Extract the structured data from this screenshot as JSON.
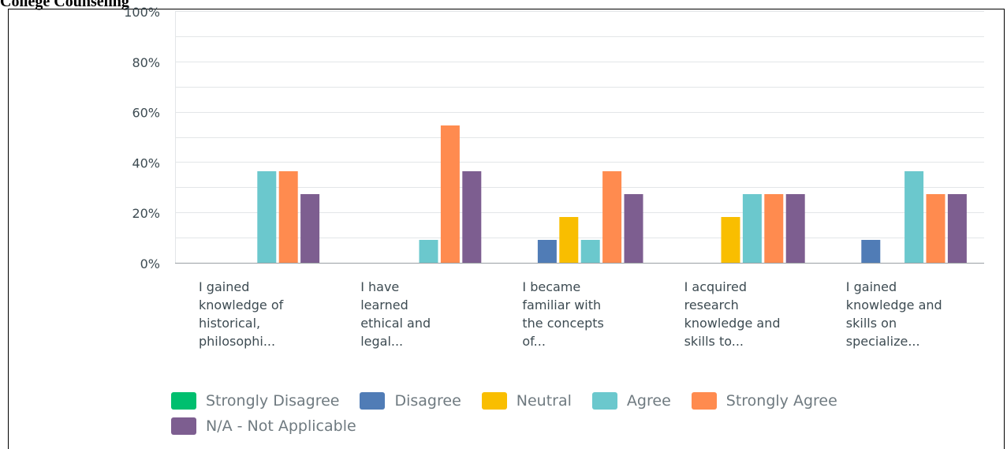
{
  "document": {
    "heading": "College Counseling"
  },
  "chart_data": {
    "type": "bar",
    "categories": [
      [
        "I gained",
        "knowledge of",
        "historical,",
        "philosophi..."
      ],
      [
        "I have",
        "learned",
        "ethical and",
        "legal..."
      ],
      [
        "I became",
        "familiar with",
        "the concepts",
        "of..."
      ],
      [
        "I acquired",
        "research",
        "knowledge and",
        "skills to..."
      ],
      [
        "I gained",
        "knowledge and",
        "skills on",
        "specialize..."
      ]
    ],
    "y_ticks": [
      "0%",
      "20%",
      "40%",
      "60%",
      "80%",
      "100%"
    ],
    "ylim": [
      0,
      100
    ],
    "series": [
      {
        "name": "Strongly Disagree",
        "color": "#00bf6f",
        "values": [
          0,
          0,
          0,
          0,
          0
        ]
      },
      {
        "name": "Disagree",
        "color": "#507cb6",
        "values": [
          0,
          0,
          9.09,
          0,
          9.09
        ]
      },
      {
        "name": "Neutral",
        "color": "#f9be00",
        "values": [
          0,
          0,
          18.18,
          18.18,
          0
        ]
      },
      {
        "name": "Agree",
        "color": "#6bc8cd",
        "values": [
          36.36,
          9.09,
          9.09,
          27.27,
          36.36
        ]
      },
      {
        "name": "Strongly Agree",
        "color": "#ff8b4f",
        "values": [
          36.36,
          54.55,
          36.36,
          27.27,
          27.27
        ]
      },
      {
        "name": "N/A - Not Applicable",
        "color": "#7d5e90",
        "values": [
          27.27,
          36.36,
          27.27,
          27.27,
          27.27
        ]
      }
    ],
    "grid": true,
    "legend_position": "bottom-left"
  }
}
